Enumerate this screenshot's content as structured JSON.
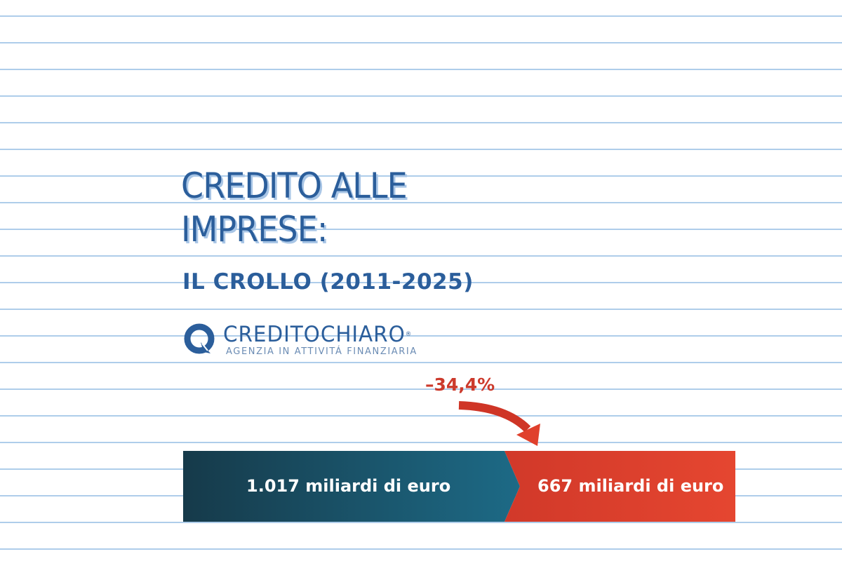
{
  "title": {
    "line1": "CREDITO ALLE",
    "line2": "IMPRESE:"
  },
  "subtitle": "IL CROLLO (2011-2025)",
  "logo": {
    "name": "CREDITOCHIARO",
    "registered": "®",
    "tagline": "AGENZIA IN ATTIVITÁ FINANZIARIA"
  },
  "change": {
    "label": "–34,4%"
  },
  "bar": {
    "before": {
      "label": "1.017 miliardi di euro",
      "color": "#1d5f78"
    },
    "after": {
      "label": "667 miliardi di euro",
      "color": "#d33a2a"
    }
  },
  "colors": {
    "accent": "#2b5e9b",
    "lines": "#aecdea",
    "negative": "#cc3a2c"
  }
}
